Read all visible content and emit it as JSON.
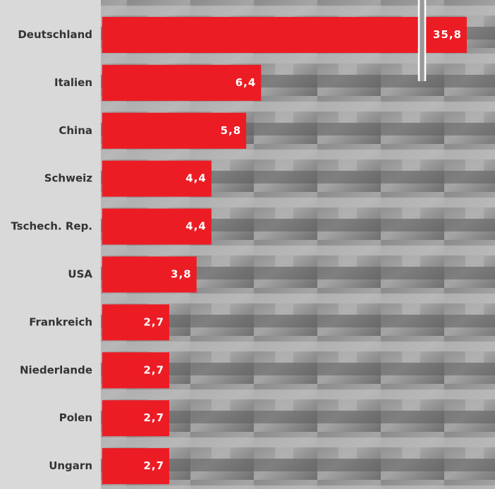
{
  "chart_data": {
    "type": "bar",
    "orientation": "horizontal",
    "color": "#ec1c24",
    "categories": [
      "Deutschland",
      "Italien",
      "China",
      "Schweiz",
      "Tschech. Rep.",
      "USA",
      "Frankreich",
      "Niederlande",
      "Polen",
      "Ungarn"
    ],
    "values": [
      35.8,
      6.4,
      5.8,
      4.4,
      4.4,
      3.8,
      2.7,
      2.7,
      2.7,
      2.7
    ],
    "value_labels": [
      "35,8",
      "6,4",
      "5,8",
      "4,4",
      "4,4",
      "3,8",
      "2,7",
      "2,7",
      "2,7",
      "2,7"
    ]
  }
}
